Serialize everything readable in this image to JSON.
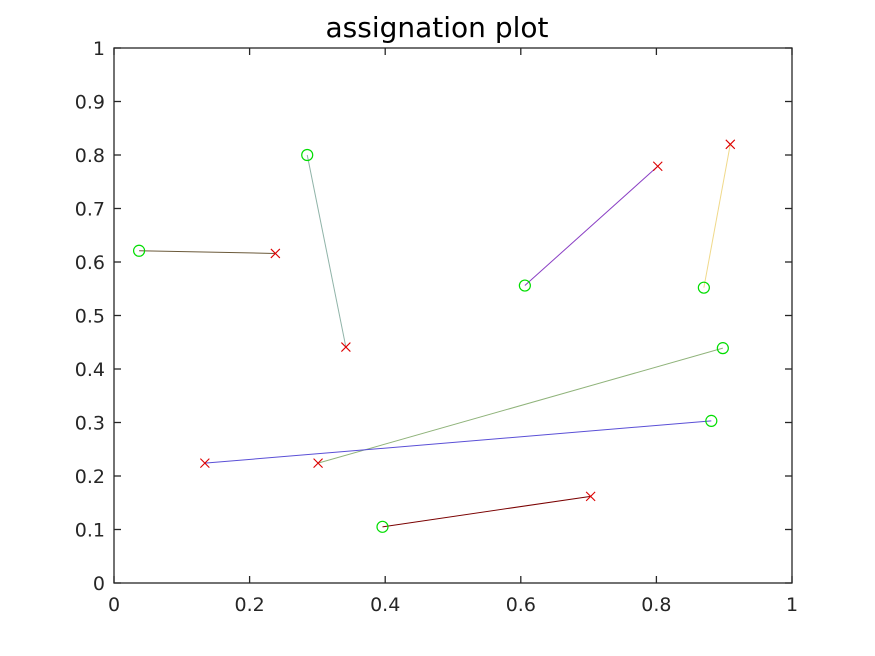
{
  "chart_data": {
    "type": "scatter",
    "title": "assignation plot",
    "xlabel": "",
    "ylabel": "",
    "xlim": [
      0,
      1
    ],
    "ylim": [
      0,
      1
    ],
    "grid": false,
    "x_ticks": [
      "0",
      "0.2",
      "0.4",
      "0.6",
      "0.8",
      "1"
    ],
    "y_ticks": [
      "0",
      "0.1",
      "0.2",
      "0.3",
      "0.4",
      "0.5",
      "0.6",
      "0.7",
      "0.8",
      "0.9",
      "1"
    ],
    "circle_marker_color": "#00dd00",
    "cross_marker_color": "#dd0000",
    "assignments": [
      {
        "circle": [
          0.037,
          0.621
        ],
        "cross": [
          0.238,
          0.616
        ],
        "line_color": "#6b5a3a"
      },
      {
        "circle": [
          0.285,
          0.8
        ],
        "cross": [
          0.342,
          0.441
        ],
        "line_color": "#8fb3a8"
      },
      {
        "circle": [
          0.606,
          0.556
        ],
        "cross": [
          0.802,
          0.779
        ],
        "line_color": "#8a3fc4"
      },
      {
        "circle": [
          0.87,
          0.552
        ],
        "cross": [
          0.909,
          0.82
        ],
        "line_color": "#f0d98a"
      },
      {
        "circle": [
          0.898,
          0.439
        ],
        "cross": [
          0.301,
          0.224
        ],
        "line_color": "#8fb37a"
      },
      {
        "circle": [
          0.881,
          0.303
        ],
        "cross": [
          0.134,
          0.224
        ],
        "line_color": "#5a4fd6"
      },
      {
        "circle": [
          0.396,
          0.105
        ],
        "cross": [
          0.703,
          0.162
        ],
        "line_color": "#7a0000"
      }
    ]
  }
}
